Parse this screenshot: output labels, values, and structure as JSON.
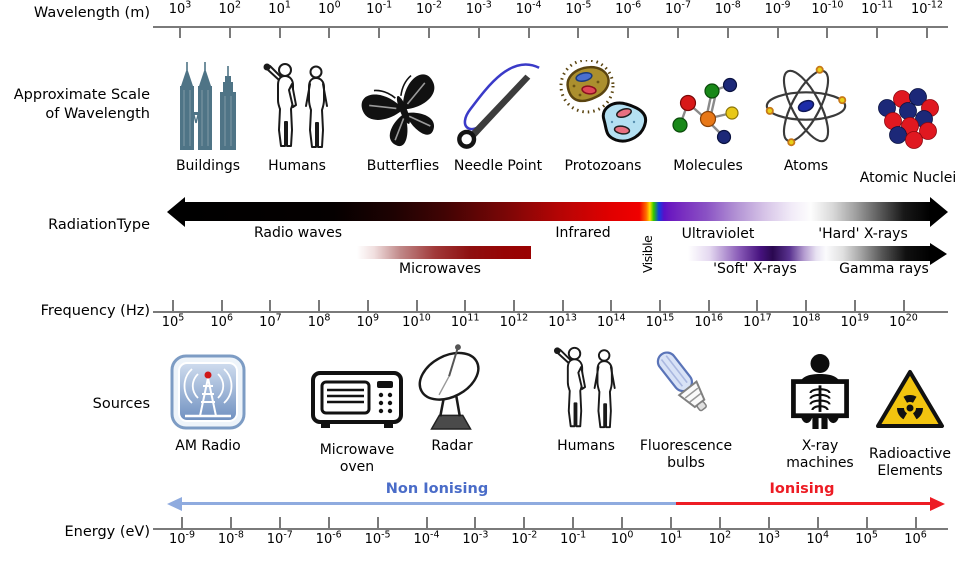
{
  "wavelength_axis": {
    "label": "Wavelength (m)",
    "tick_base": "10",
    "tick_exponents": [
      "3",
      "2",
      "1",
      "0",
      "-1",
      "-2",
      "-3",
      "-4",
      "-5",
      "-6",
      "-7",
      "-8",
      "-9",
      "-10",
      "-11",
      "-12"
    ]
  },
  "scale_row": {
    "label_lines": [
      "Approximate Scale",
      "of Wavelength"
    ],
    "items": [
      {
        "icon": "buildings-icon",
        "label": "Buildings"
      },
      {
        "icon": "humans-icon",
        "label": "Humans"
      },
      {
        "icon": "butterfly-icon",
        "label": "Butterflies"
      },
      {
        "icon": "needle-icon",
        "label": "Needle Point"
      },
      {
        "icon": "protozoan-icon",
        "label": "Protozoans"
      },
      {
        "icon": "molecule-icon",
        "label": "Molecules"
      },
      {
        "icon": "atom-icon",
        "label": "Atoms"
      },
      {
        "icon": "atomic-nucleus-icon",
        "label": "Atomic Nuclei"
      }
    ]
  },
  "radiation_row": {
    "label": "RadiationType",
    "main_bands": [
      {
        "label": "Radio waves"
      },
      {
        "label": "Infrared"
      },
      {
        "label": "Visible"
      },
      {
        "label": "Ultraviolet"
      },
      {
        "label": "'Hard' X-rays"
      }
    ],
    "sub_bands": [
      {
        "label": "Microwaves"
      },
      {
        "label": "'Soft' X-rays"
      },
      {
        "label": "Gamma rays"
      }
    ]
  },
  "frequency_axis": {
    "label": "Frequency (Hz)",
    "tick_base": "10",
    "tick_exponents": [
      "5",
      "6",
      "7",
      "8",
      "9",
      "10",
      "11",
      "12",
      "13",
      "14",
      "15",
      "16",
      "17",
      "18",
      "19",
      "20"
    ]
  },
  "sources_row": {
    "label": "Sources",
    "items": [
      {
        "icon": "am-radio-icon",
        "label_lines": [
          "AM Radio"
        ]
      },
      {
        "icon": "microwave-oven-icon",
        "label_lines": [
          "Microwave",
          "oven"
        ]
      },
      {
        "icon": "radar-icon",
        "label_lines": [
          "Radar"
        ]
      },
      {
        "icon": "humans-icon",
        "label_lines": [
          "Humans"
        ]
      },
      {
        "icon": "fluorescent-bulb-icon",
        "label_lines": [
          "Fluorescence",
          "bulbs"
        ]
      },
      {
        "icon": "xray-machine-icon",
        "label_lines": [
          "X-ray",
          "machines"
        ]
      },
      {
        "icon": "radioactive-icon",
        "label_lines": [
          "Radioactive",
          "Elements"
        ]
      }
    ]
  },
  "ionisation": {
    "non_ionising_label": "Non Ionising",
    "ionising_label": "Ionising",
    "non_ionising_color": "#4a6cc8",
    "ionising_color": "#ed1c24"
  },
  "energy_axis": {
    "label": "Energy (eV)",
    "tick_base": "10",
    "tick_exponents": [
      "-9",
      "-8",
      "-7",
      "-6",
      "-5",
      "-4",
      "-3",
      "-2",
      "-1",
      "0",
      "1",
      "2",
      "3",
      "4",
      "5",
      "6"
    ]
  }
}
